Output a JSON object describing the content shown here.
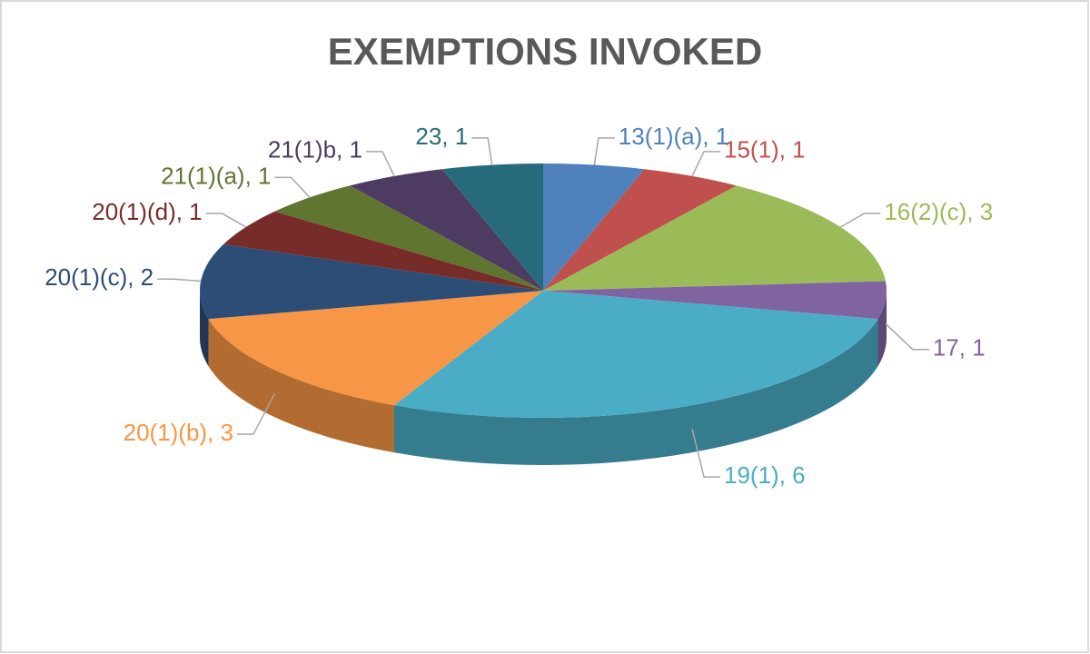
{
  "chart_data": {
    "type": "pie",
    "title": "EXEMPTIONS INVOKED",
    "values": [
      1,
      1,
      3,
      1,
      6,
      3,
      2,
      1,
      1,
      1,
      1
    ],
    "value_labels": [
      "13(1)(a), 1",
      "15(1), 1",
      "16(2)(c), 3",
      "17, 1",
      "19(1), 6",
      "20(1)(b), 3",
      "20(1)(c), 2",
      "20(1)(d), 1",
      "21(1)(a), 1",
      "21(1)b, 1",
      "23, 1"
    ],
    "colors": [
      "#4f81bd",
      "#c0504d",
      "#9bbb59",
      "#8064a2",
      "#4bacc6",
      "#f79646",
      "#2c4d75",
      "#772c2a",
      "#5f7530",
      "#4d3b62",
      "#276a7c"
    ],
    "three_d": true
  }
}
